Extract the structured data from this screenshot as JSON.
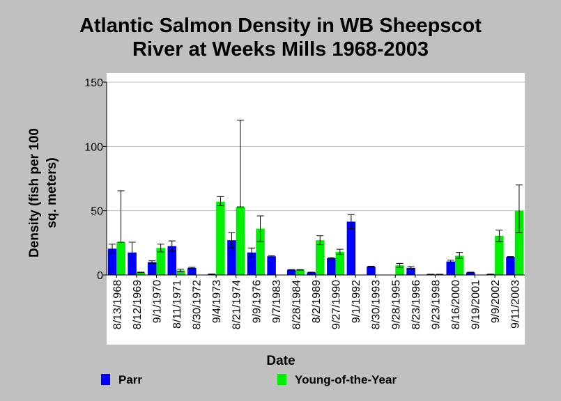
{
  "chart_data": {
    "type": "bar",
    "title_line1": "Atlantic Salmon Density in WB Sheepscot",
    "title_line2": "River at Weeks Mills 1968-2003",
    "xlabel": "Date",
    "ylabel_line1": "Density (fish per 100",
    "ylabel_line2": "sq. meters)",
    "ylim": [
      0,
      150
    ],
    "yticks": [
      0,
      50,
      100,
      150
    ],
    "grid": true,
    "legend_placement": "bottom",
    "categories": [
      "8/13/1968",
      "8/12/1969",
      "9/1/1970",
      "8/11/1971",
      "8/30/1972",
      "9/4/1973",
      "8/21/1974",
      "9/9/1976",
      "9/7/1983",
      "8/28/1984",
      "8/2/1989",
      "9/27/1990",
      "9/1/1992",
      "8/30/1993",
      "9/28/1995",
      "8/23/1996",
      "9/23/1998",
      "8/16/2000",
      "9/19/2001",
      "9/9/2002",
      "9/11/2003"
    ],
    "series": [
      {
        "name": "Parr",
        "color": "#0000ff",
        "values": [
          20.5,
          17.5,
          10,
          22.5,
          5.5,
          0.5,
          27,
          17.5,
          14.5,
          4,
          2,
          13,
          41.5,
          6.5,
          0,
          5.5,
          0.5,
          10.5,
          2,
          0.5,
          14
        ],
        "err_upper": [
          24,
          25.5,
          11,
          26.5,
          6,
          0.8,
          33,
          21,
          15,
          4.2,
          2.2,
          13.5,
          47,
          6.8,
          0,
          6.5,
          0.6,
          11.5,
          2.2,
          0.7,
          14.3
        ],
        "err_lower": [
          17,
          9.5,
          9,
          18.5,
          5,
          0.2,
          21,
          14,
          14,
          3.8,
          1.8,
          12.5,
          36,
          6.2,
          0,
          4.5,
          0.4,
          9.5,
          1.8,
          0.3,
          13.7
        ]
      },
      {
        "name": "Young-of-the-Year",
        "color": "#00ee00",
        "values": [
          25.5,
          2,
          21,
          3.5,
          0,
          57,
          53,
          36,
          0,
          4,
          27,
          18,
          0,
          0,
          7.5,
          0,
          0.5,
          15,
          0,
          30.5,
          50
        ],
        "err_upper": [
          65.5,
          2.2,
          24,
          4.5,
          0,
          61,
          120.5,
          46,
          0,
          4.2,
          30.5,
          20,
          0,
          0,
          9,
          0,
          0.6,
          17.5,
          0,
          35,
          70
        ],
        "err_lower": [
          25.5,
          1.8,
          18,
          2.5,
          0,
          54,
          53,
          26,
          0,
          3.8,
          23.5,
          16,
          0,
          0,
          6,
          0,
          0.4,
          13,
          0,
          26,
          33
        ]
      }
    ]
  }
}
